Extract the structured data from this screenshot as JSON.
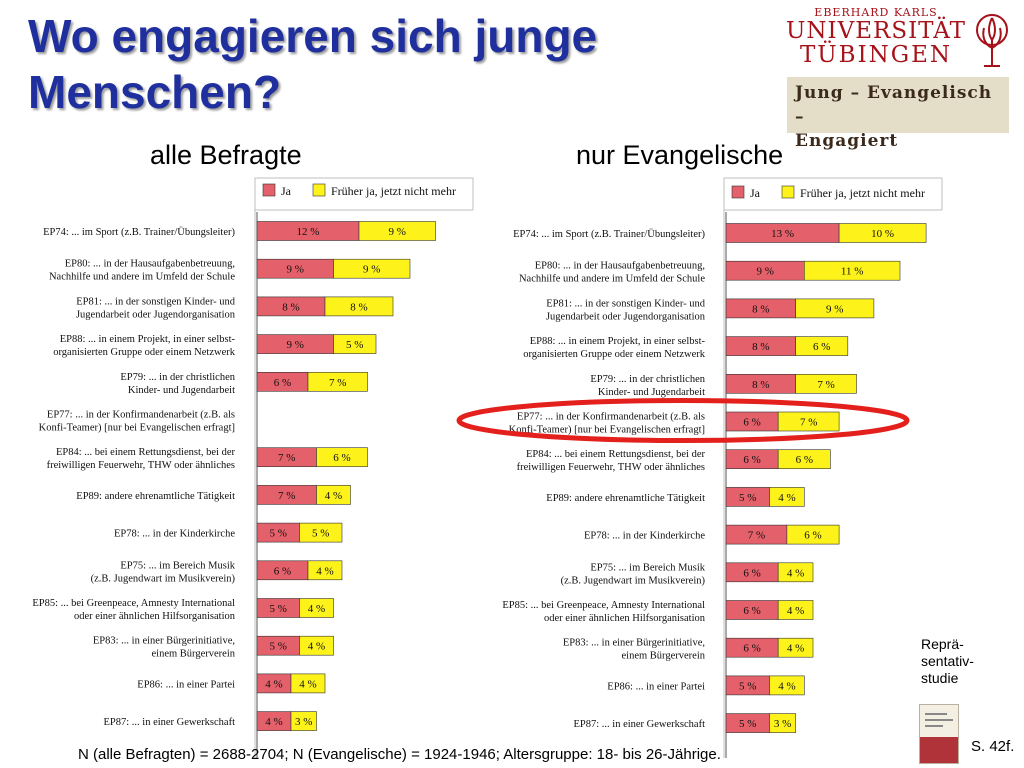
{
  "title": "Wo engagieren sich junge Menschen?",
  "logo": {
    "line1": "EBERHARD KARLS",
    "line2": "UNIVERSITÄT",
    "line3": "TÜBINGEN",
    "brand_line1": "Jung – Evangelisch –",
    "brand_line2": "Engagiert"
  },
  "colors": {
    "ja": "#e4606a",
    "frueher": "#fdf31a",
    "title": "#1f2f9e",
    "highlight": "#e3201c"
  },
  "side_note": [
    "Reprä-",
    "sentativ-",
    "studie"
  ],
  "page_ref": "S. 42f.",
  "footnote": "N (alle Befragten) = 2688-2704; N (Evangelische) = 1924-1946; Altersgruppe: 18- bis 26-Jährige.",
  "chart_data": [
    {
      "type": "bar",
      "orientation": "horizontal",
      "stacked": true,
      "title": "alle Befragte",
      "legend": [
        "Ja",
        "Früher ja, jetzt nicht mehr"
      ],
      "categories": [
        [
          "EP74: ... im Sport (z.B. Trainer/Übungsleiter)"
        ],
        [
          "EP80: ... in der Hausaufgabenbetreuung,",
          "Nachhilfe und andere im Umfeld der Schule"
        ],
        [
          "EP81: ... in der sonstigen Kinder- und",
          "Jugendarbeit oder Jugendorganisation"
        ],
        [
          "EP88: ... in einem Projekt, in einer selbst-",
          "organisierten Gruppe oder einem Netzwerk"
        ],
        [
          "EP79: ... in der christlichen",
          "Kinder- und Jugendarbeit"
        ],
        [
          "EP77: ... in der Konfirmandenarbeit (z.B. als",
          "Konfi-Teamer) [nur bei Evangelischen erfragt]"
        ],
        [
          "EP84: ... bei einem Rettungsdienst, bei der",
          "freiwilligen Feuerwehr, THW oder ähnliches"
        ],
        [
          "EP89: andere ehrenamtliche Tätigkeit"
        ],
        [
          "EP78: ... in der Kinderkirche"
        ],
        [
          "EP75: ... im Bereich Musik",
          "(z.B. Jugendwart im Musikverein)"
        ],
        [
          "EP85: ... bei Greenpeace, Amnesty International",
          "oder einer ähnlichen Hilfsorganisation"
        ],
        [
          "EP83: ... in einer Bürgerinitiative,",
          "einem Bürgerverein"
        ],
        [
          "EP86: ... in einer Partei"
        ],
        [
          "EP87: ... in einer Gewerkschaft"
        ]
      ],
      "series": [
        {
          "name": "Ja",
          "values": [
            12,
            9,
            8,
            9,
            6,
            null,
            7,
            7,
            5,
            6,
            5,
            5,
            4,
            4
          ]
        },
        {
          "name": "Früher ja, jetzt nicht mehr",
          "values": [
            9,
            9,
            8,
            5,
            7,
            null,
            6,
            4,
            5,
            4,
            4,
            4,
            4,
            3
          ]
        }
      ],
      "unit": "%"
    },
    {
      "type": "bar",
      "orientation": "horizontal",
      "stacked": true,
      "title": "nur Evangelische",
      "legend": [
        "Ja",
        "Früher ja, jetzt nicht mehr"
      ],
      "categories": [
        [
          "EP74: ... im Sport (z.B. Trainer/Übungsleiter)"
        ],
        [
          "EP80: ... in der Hausaufgabenbetreuung,",
          "Nachhilfe und andere im Umfeld der Schule"
        ],
        [
          "EP81: ... in der sonstigen Kinder- und",
          "Jugendarbeit oder Jugendorganisation"
        ],
        [
          "EP88: ... in einem Projekt, in einer selbst-",
          "organisierten Gruppe oder einem Netzwerk"
        ],
        [
          "EP79: ... in der christlichen",
          "Kinder- und Jugendarbeit"
        ],
        [
          "EP77: ... in der Konfirmandenarbeit (z.B. als",
          "Konfi-Teamer) [nur bei Evangelischen erfragt]"
        ],
        [
          "EP84: ... bei einem Rettungsdienst, bei der",
          "freiwilligen Feuerwehr, THW oder ähnliches"
        ],
        [
          "EP89: andere ehrenamtliche Tätigkeit"
        ],
        [
          "EP78: ... in der Kinderkirche"
        ],
        [
          "EP75: ... im Bereich Musik",
          "(z.B. Jugendwart im Musikverein)"
        ],
        [
          "EP85: ... bei Greenpeace, Amnesty International",
          "oder einer ähnlichen Hilfsorganisation"
        ],
        [
          "EP83: ... in einer Bürgerinitiative,",
          "einem Bürgerverein"
        ],
        [
          "EP86: ... in einer Partei"
        ],
        [
          "EP87: ... in einer Gewerkschaft"
        ]
      ],
      "series": [
        {
          "name": "Ja",
          "values": [
            13,
            9,
            8,
            8,
            8,
            6,
            6,
            5,
            7,
            6,
            6,
            6,
            5,
            5
          ]
        },
        {
          "name": "Früher ja, jetzt nicht mehr",
          "values": [
            10,
            11,
            9,
            6,
            7,
            7,
            6,
            4,
            6,
            4,
            4,
            4,
            4,
            3
          ]
        }
      ],
      "unit": "%",
      "highlighted_category": "EP77: ... in der Konfirmandenarbeit (z.B. als Konfi-Teamer) [nur bei Evangelischen erfragt]"
    }
  ]
}
